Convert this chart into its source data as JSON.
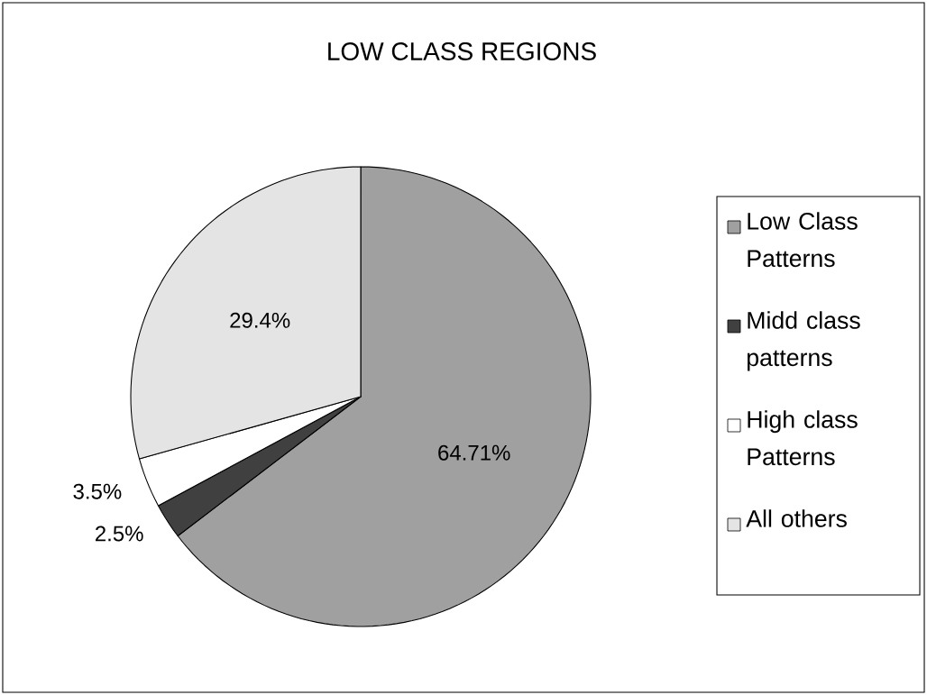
{
  "chart_data": {
    "type": "pie",
    "title": "LOW CLASS REGIONS",
    "categories": [
      "Low Class Patterns",
      "Midd class patterns",
      "High class Patterns",
      "All others"
    ],
    "values": [
      64.71,
      2.5,
      3.5,
      29.4
    ],
    "colors": [
      "#a0a0a0",
      "#404040",
      "#ffffff",
      "#e4e4e4"
    ],
    "value_labels": [
      "64.71%",
      "2.5%",
      "3.5%",
      "29.4%"
    ],
    "legend": "right"
  }
}
